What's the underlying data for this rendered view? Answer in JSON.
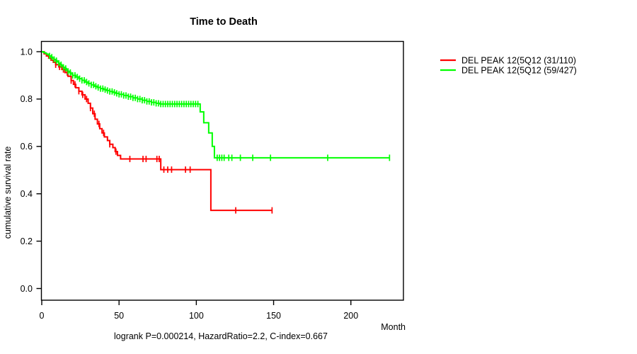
{
  "chart_data": {
    "type": "line",
    "subtype": "kaplan-meier-survival-step",
    "title": "Time to Death",
    "xlabel": "Month",
    "ylabel": "cumulative survival rate",
    "footer_annotation": "logrank P=0.000214, HazardRatio=2.2, C-index=0.667",
    "grid": false,
    "legend_position": "right-outside",
    "axis_color": "#000000",
    "background_color": "#ffffff",
    "xlim": [
      0,
      234
    ],
    "ylim": [
      0,
      1.04
    ],
    "xticks": [
      0,
      50,
      100,
      150,
      200
    ],
    "yticks": [
      0.0,
      0.2,
      0.4,
      0.6,
      0.8,
      1.0
    ],
    "series": [
      {
        "name": "DEL PEAK 12(5Q12 (31/110)",
        "color": "#ff0000",
        "start": [
          0,
          1.0
        ],
        "steps": [
          [
            1.5,
            0.991
          ],
          [
            3,
            0.982
          ],
          [
            4.5,
            0.973
          ],
          [
            6,
            0.964
          ],
          [
            7.5,
            0.955
          ],
          [
            9,
            0.945
          ],
          [
            11,
            0.936
          ],
          [
            13,
            0.925
          ],
          [
            15,
            0.912
          ],
          [
            17,
            0.896
          ],
          [
            19,
            0.878
          ],
          [
            20.5,
            0.862
          ],
          [
            22,
            0.848
          ],
          [
            24,
            0.833
          ],
          [
            26,
            0.818
          ],
          [
            28,
            0.8
          ],
          [
            30,
            0.782
          ],
          [
            31.5,
            0.762
          ],
          [
            33,
            0.738
          ],
          [
            34.5,
            0.715
          ],
          [
            36,
            0.695
          ],
          [
            37.5,
            0.675
          ],
          [
            39,
            0.657
          ],
          [
            40.5,
            0.64
          ],
          [
            42.5,
            0.625
          ],
          [
            44,
            0.609
          ],
          [
            46,
            0.595
          ],
          [
            47.5,
            0.578
          ],
          [
            49,
            0.562
          ],
          [
            51,
            0.547
          ],
          [
            77,
            0.502
          ],
          [
            109.4,
            0.33
          ]
        ],
        "end_month": 149.2,
        "censor_marks": [
          9,
          11.5,
          14,
          16.5,
          19,
          21.5,
          24,
          26.5,
          29,
          31.5,
          34,
          37,
          40,
          44,
          48,
          57,
          65.5,
          67.5,
          74.5,
          76,
          79,
          81.5,
          84,
          93,
          96,
          125.5,
          149
        ]
      },
      {
        "name": "DEL PEAK 12(5Q12 (59/427)",
        "color": "#00ff00",
        "start": [
          0,
          1.0
        ],
        "steps": [
          [
            1,
            0.997
          ],
          [
            2,
            0.994
          ],
          [
            3,
            0.99
          ],
          [
            4,
            0.986
          ],
          [
            5,
            0.982
          ],
          [
            6,
            0.977
          ],
          [
            7,
            0.972
          ],
          [
            8,
            0.967
          ],
          [
            9,
            0.962
          ],
          [
            10,
            0.957
          ],
          [
            11,
            0.951
          ],
          [
            12,
            0.945
          ],
          [
            13,
            0.94
          ],
          [
            14,
            0.934
          ],
          [
            15,
            0.929
          ],
          [
            16,
            0.923
          ],
          [
            17,
            0.917
          ],
          [
            18,
            0.912
          ],
          [
            19,
            0.906
          ],
          [
            20,
            0.9
          ],
          [
            22,
            0.893
          ],
          [
            24,
            0.886
          ],
          [
            26,
            0.879
          ],
          [
            28,
            0.872
          ],
          [
            30,
            0.866
          ],
          [
            32,
            0.86
          ],
          [
            34,
            0.854
          ],
          [
            36,
            0.849
          ],
          [
            38,
            0.844
          ],
          [
            40,
            0.84
          ],
          [
            42,
            0.836
          ],
          [
            44,
            0.832
          ],
          [
            46,
            0.828
          ],
          [
            48,
            0.824
          ],
          [
            50,
            0.82
          ],
          [
            53,
            0.815
          ],
          [
            56,
            0.81
          ],
          [
            59,
            0.805
          ],
          [
            62,
            0.8
          ],
          [
            65,
            0.795
          ],
          [
            68,
            0.79
          ],
          [
            71,
            0.786
          ],
          [
            74,
            0.782
          ],
          [
            76.5,
            0.779
          ],
          [
            102.5,
            0.746
          ],
          [
            104.8,
            0.7
          ],
          [
            108,
            0.657
          ],
          [
            110.3,
            0.6
          ],
          [
            111.7,
            0.552
          ]
        ],
        "end_month": 225.2,
        "censor_marks": [
          5,
          6.5,
          8,
          9.5,
          11,
          12.5,
          14,
          15.5,
          17,
          18.5,
          20,
          21.5,
          23,
          24.5,
          26,
          27.5,
          29,
          30.5,
          32,
          33.5,
          35,
          36.5,
          38,
          39.5,
          41,
          42.5,
          44,
          45.5,
          47,
          48.5,
          50,
          51.5,
          53,
          54.5,
          56,
          57.5,
          59,
          60.5,
          62,
          63.5,
          65,
          66.5,
          68,
          69.5,
          71,
          72.5,
          74,
          75.5,
          77,
          78.5,
          80,
          81.5,
          83,
          84.5,
          86,
          87.5,
          89,
          90.5,
          92,
          93.5,
          95,
          96.5,
          98,
          99.5,
          101,
          113.5,
          115,
          116.5,
          118,
          121,
          123,
          128.5,
          136.5,
          148,
          185,
          225
        ]
      }
    ]
  }
}
